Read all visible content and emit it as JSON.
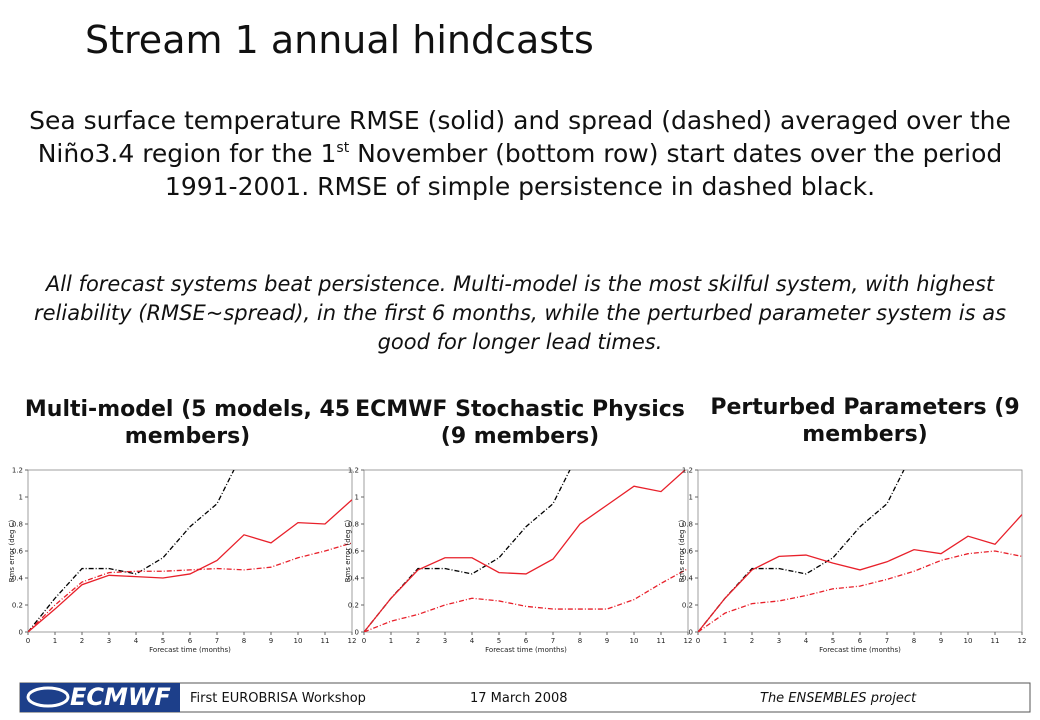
{
  "title": "Stream 1 annual hindcasts",
  "description": {
    "before": "Sea surface temperature RMSE (solid) and spread (dashed) averaged over the Niño3.4 region for the 1",
    "sup": "st",
    "after": " November (bottom row) start dates over the period 1991-2001. RMSE of simple persistence in dashed black."
  },
  "conclusion": "All forecast systems beat persistence. Multi-model is the most skilful system, with highest reliability (RMSE~spread), in the first 6 months, while the perturbed parameter system is as good for longer lead times.",
  "footer": {
    "logo": "ECMWF",
    "event": "First EUROBRISA Workshop",
    "date": "17 March 2008",
    "project": "The ENSEMBLES project"
  },
  "chart_data": [
    {
      "type": "line",
      "title": "Multi-model (5 models, 45 members)",
      "xlabel": "Forecast time (months)",
      "ylabel": "Rms error (deg C)",
      "x": [
        0,
        1,
        2,
        3,
        4,
        5,
        6,
        7,
        8,
        9,
        10,
        11,
        12
      ],
      "xlim": [
        0,
        12
      ],
      "xticks": [
        0,
        1,
        2,
        3,
        4,
        5,
        6,
        7,
        8,
        9,
        10,
        11,
        12
      ],
      "ylim": [
        0,
        1.2
      ],
      "yticks": [
        0,
        0.2,
        0.4,
        0.6,
        0.8,
        1,
        1.2
      ],
      "series": [
        {
          "color": "#000000",
          "style": "dashed",
          "values": [
            0,
            0.25,
            0.47,
            0.47,
            0.43,
            0.55,
            0.78,
            0.95,
            1.35,
            null,
            null,
            null,
            null
          ]
        },
        {
          "color": "#e8202a",
          "style": "solid",
          "values": [
            0,
            0.17,
            0.35,
            0.42,
            0.41,
            0.4,
            0.43,
            0.53,
            0.72,
            0.66,
            0.81,
            0.8,
            0.98
          ]
        },
        {
          "color": "#e8202a",
          "style": "dashed",
          "values": [
            0,
            0.2,
            0.37,
            0.44,
            0.45,
            0.45,
            0.46,
            0.47,
            0.46,
            0.48,
            0.55,
            0.6,
            0.66
          ]
        }
      ]
    },
    {
      "type": "line",
      "title": "ECMWF Stochastic Physics (9 members)",
      "xlabel": "Forecast time (months)",
      "ylabel": "Rms error (deg C)",
      "x": [
        0,
        1,
        2,
        3,
        4,
        5,
        6,
        7,
        8,
        9,
        10,
        11,
        12
      ],
      "xlim": [
        0,
        12
      ],
      "xticks": [
        0,
        1,
        2,
        3,
        4,
        5,
        6,
        7,
        8,
        9,
        10,
        11,
        12
      ],
      "ylim": [
        0,
        1.2
      ],
      "yticks": [
        0,
        0.2,
        0.4,
        0.6,
        0.8,
        1,
        1.2
      ],
      "series": [
        {
          "color": "#000000",
          "style": "dashed",
          "values": [
            0,
            0.25,
            0.47,
            0.47,
            0.43,
            0.55,
            0.78,
            0.95,
            1.35,
            null,
            null,
            null,
            null
          ]
        },
        {
          "color": "#e8202a",
          "style": "solid",
          "values": [
            0,
            0.25,
            0.46,
            0.55,
            0.55,
            0.44,
            0.43,
            0.54,
            0.8,
            0.94,
            1.08,
            1.04,
            1.22
          ]
        },
        {
          "color": "#e8202a",
          "style": "dashed",
          "values": [
            0,
            0.08,
            0.13,
            0.2,
            0.25,
            0.23,
            0.19,
            0.17,
            0.17,
            0.17,
            0.24,
            0.36,
            0.47
          ]
        }
      ]
    },
    {
      "type": "line",
      "title": "Perturbed Parameters (9 members)",
      "xlabel": "Forecast time (months)",
      "ylabel": "Rms error (deg C)",
      "x": [
        0,
        1,
        2,
        3,
        4,
        5,
        6,
        7,
        8,
        9,
        10,
        11,
        12
      ],
      "xlim": [
        0,
        12
      ],
      "xticks": [
        0,
        1,
        2,
        3,
        4,
        5,
        6,
        7,
        8,
        9,
        10,
        11,
        12
      ],
      "ylim": [
        0,
        1.2
      ],
      "yticks": [
        0,
        0.2,
        0.4,
        0.6,
        0.8,
        1,
        1.2
      ],
      "series": [
        {
          "color": "#000000",
          "style": "dashed",
          "values": [
            0,
            0.25,
            0.47,
            0.47,
            0.43,
            0.55,
            0.78,
            0.95,
            1.35,
            null,
            null,
            null,
            null
          ]
        },
        {
          "color": "#e8202a",
          "style": "solid",
          "values": [
            0,
            0.25,
            0.46,
            0.56,
            0.57,
            0.51,
            0.46,
            0.52,
            0.61,
            0.58,
            0.71,
            0.65,
            0.87
          ]
        },
        {
          "color": "#e8202a",
          "style": "dashed",
          "values": [
            0,
            0.14,
            0.21,
            0.23,
            0.27,
            0.32,
            0.34,
            0.39,
            0.45,
            0.53,
            0.58,
            0.6,
            0.56
          ]
        }
      ]
    }
  ]
}
